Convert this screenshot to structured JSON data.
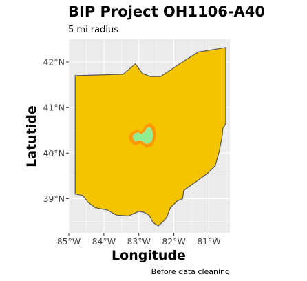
{
  "title": "BIP Project OH1106-A40",
  "subtitle": "5 mi radius",
  "caption": "Before data cleaning",
  "colors": {
    "panel": "#ebebeb",
    "grid": "#ffffff",
    "state_fill": "#f5c400",
    "state_outline": "#555555",
    "buffer_outline": "#ff9900",
    "project_fill": "#90ee90"
  },
  "chart_data": {
    "type": "map",
    "xlabel": "Longitude",
    "ylabel": "Latutide",
    "xlim": [
      -85.0,
      -80.4
    ],
    "ylim": [
      38.25,
      42.5
    ],
    "x_ticks": [
      {
        "value": -85,
        "label": "85°W"
      },
      {
        "value": -84,
        "label": "84°W"
      },
      {
        "value": -83,
        "label": "83°W"
      },
      {
        "value": -82,
        "label": "82°W"
      },
      {
        "value": -81,
        "label": "81°W"
      }
    ],
    "y_ticks": [
      {
        "value": 39,
        "label": "39°N"
      },
      {
        "value": 40,
        "label": "40°N"
      },
      {
        "value": 41,
        "label": "41°N"
      },
      {
        "value": 42,
        "label": "42°N"
      }
    ],
    "grid": true,
    "layers": [
      {
        "name": "state",
        "coords": [
          [
            -84.82,
            41.7
          ],
          [
            -83.45,
            41.73
          ],
          [
            -83.1,
            41.96
          ],
          [
            -82.9,
            41.75
          ],
          [
            -82.68,
            41.68
          ],
          [
            -82.38,
            41.68
          ],
          [
            -81.7,
            42.03
          ],
          [
            -81.3,
            42.22
          ],
          [
            -80.52,
            42.32
          ],
          [
            -80.52,
            40.64
          ],
          [
            -80.6,
            40.55
          ],
          [
            -80.62,
            40.38
          ],
          [
            -80.7,
            40.05
          ],
          [
            -80.82,
            39.72
          ],
          [
            -81.05,
            39.55
          ],
          [
            -81.35,
            39.38
          ],
          [
            -81.56,
            39.27
          ],
          [
            -81.72,
            39.18
          ],
          [
            -81.75,
            39.0
          ],
          [
            -81.9,
            38.95
          ],
          [
            -82.1,
            38.8
          ],
          [
            -82.2,
            38.6
          ],
          [
            -82.3,
            38.5
          ],
          [
            -82.45,
            38.4
          ],
          [
            -82.6,
            38.48
          ],
          [
            -82.7,
            38.63
          ],
          [
            -82.85,
            38.7
          ],
          [
            -83.0,
            38.72
          ],
          [
            -83.3,
            38.62
          ],
          [
            -83.65,
            38.64
          ],
          [
            -83.9,
            38.75
          ],
          [
            -84.25,
            38.8
          ],
          [
            -84.45,
            38.92
          ],
          [
            -84.6,
            39.07
          ],
          [
            -84.82,
            39.1
          ]
        ]
      },
      {
        "name": "buffer-5mi",
        "coords": [
          [
            -83.18,
            40.44
          ],
          [
            -83.05,
            40.48
          ],
          [
            -82.92,
            40.44
          ],
          [
            -82.85,
            40.5
          ],
          [
            -82.78,
            40.6
          ],
          [
            -82.68,
            40.63
          ],
          [
            -82.58,
            40.56
          ],
          [
            -82.55,
            40.4
          ],
          [
            -82.58,
            40.28
          ],
          [
            -82.65,
            40.18
          ],
          [
            -82.78,
            40.15
          ],
          [
            -82.9,
            40.22
          ],
          [
            -82.98,
            40.24
          ],
          [
            -83.1,
            40.2
          ],
          [
            -83.22,
            40.27
          ],
          [
            -83.25,
            40.36
          ]
        ]
      },
      {
        "name": "project-area",
        "coords": [
          [
            -83.12,
            40.42
          ],
          [
            -83.02,
            40.45
          ],
          [
            -82.92,
            40.4
          ],
          [
            -82.84,
            40.46
          ],
          [
            -82.76,
            40.55
          ],
          [
            -82.68,
            40.56
          ],
          [
            -82.62,
            40.48
          ],
          [
            -82.6,
            40.38
          ],
          [
            -82.63,
            40.28
          ],
          [
            -82.7,
            40.22
          ],
          [
            -82.8,
            40.21
          ],
          [
            -82.9,
            40.27
          ],
          [
            -83.0,
            40.29
          ],
          [
            -83.1,
            40.26
          ],
          [
            -83.16,
            40.32
          ],
          [
            -83.17,
            40.38
          ]
        ]
      }
    ]
  }
}
